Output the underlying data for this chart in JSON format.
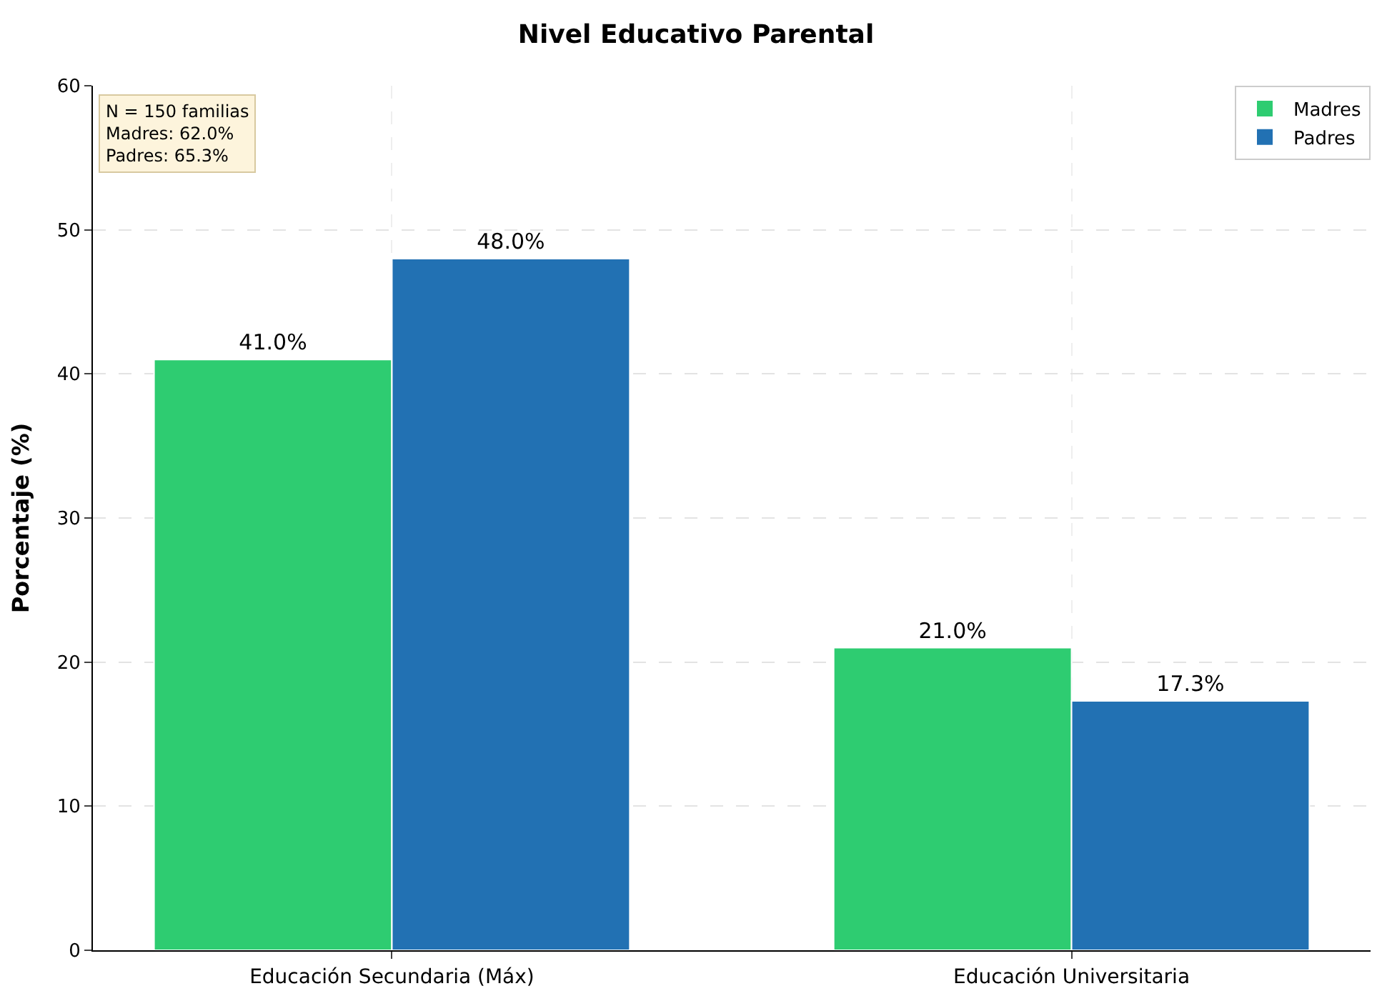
{
  "chart_data": {
    "type": "bar",
    "title": "Nivel Educativo Parental",
    "ylabel": "Porcentaje (%)",
    "categories": [
      "Educación Secundaria (Máx)",
      "Educación Universitaria"
    ],
    "series": [
      {
        "name": "Madres",
        "color": "#2ecc71",
        "values": [
          41.0,
          21.0
        ],
        "value_labels": [
          "41.0%",
          "21.0%"
        ]
      },
      {
        "name": "Padres",
        "color": "#2271b3",
        "values": [
          48.0,
          17.3
        ],
        "value_labels": [
          "48.0%",
          "17.3%"
        ]
      }
    ],
    "ylim": [
      0,
      60
    ],
    "yticks": [
      0,
      10,
      20,
      30,
      40,
      50,
      60
    ],
    "grid": true,
    "legend": "top right",
    "annotations": [
      "N = 150 familias\nMadres: 62.0%\nPadres: 65.3%"
    ]
  }
}
